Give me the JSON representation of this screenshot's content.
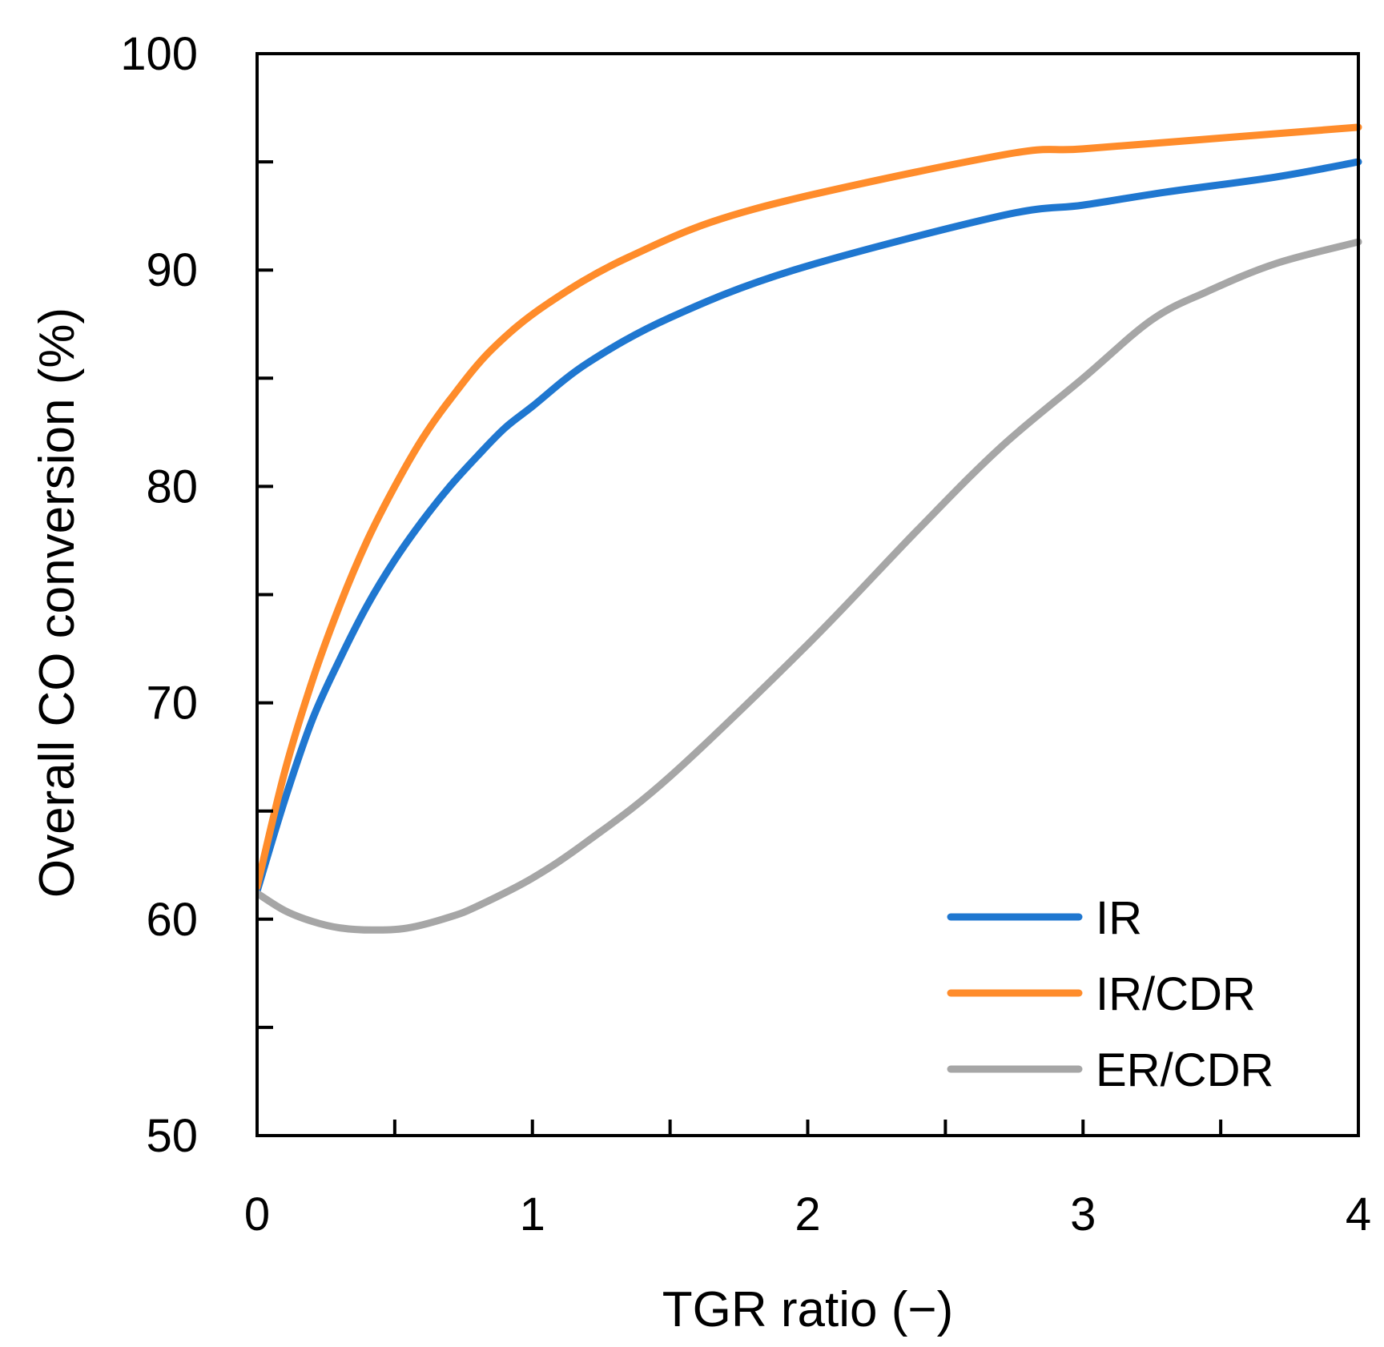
{
  "chart_data": {
    "type": "line",
    "title": "",
    "xlabel": "TGR ratio (−)",
    "ylabel": "Overall CO conversion (%)",
    "xlim": [
      0,
      4
    ],
    "ylim": [
      50,
      100
    ],
    "x_ticks": [
      0,
      1,
      2,
      3,
      4
    ],
    "x_tick_labels": [
      "0",
      "1",
      "2",
      "3",
      "4"
    ],
    "x_minor_ticks": [
      0.5,
      1.5,
      2.5,
      3.5
    ],
    "y_ticks": [
      50,
      60,
      70,
      80,
      90,
      100
    ],
    "y_tick_labels": [
      "50",
      "60",
      "70",
      "80",
      "90",
      "100"
    ],
    "y_minor_ticks": [
      55,
      65,
      75,
      85,
      95
    ],
    "grid": false,
    "legend_position": "bottom-right",
    "series": [
      {
        "name": "IR",
        "color": "#1f77d0",
        "x": [
          0,
          0.1,
          0.2,
          0.3,
          0.4,
          0.5,
          0.6,
          0.7,
          0.8,
          0.9,
          1.0,
          1.2,
          1.5,
          1.95,
          2.7,
          3.0,
          3.3,
          3.7,
          4.0
        ],
        "y": [
          61.3,
          65.5,
          69.2,
          72.0,
          74.5,
          76.6,
          78.4,
          80.0,
          81.4,
          82.7,
          83.7,
          85.7,
          87.8,
          90.0,
          92.5,
          93.0,
          93.6,
          94.3,
          95.0
        ]
      },
      {
        "name": "IR/CDR",
        "color": "#ff8c2b",
        "x": [
          0,
          0.1,
          0.2,
          0.3,
          0.4,
          0.5,
          0.6,
          0.7,
          0.85,
          1.05,
          1.35,
          1.8,
          2.7,
          3.0,
          3.5,
          4.0
        ],
        "y": [
          61.5,
          66.8,
          71.0,
          74.5,
          77.5,
          80.0,
          82.2,
          84.0,
          86.3,
          88.4,
          90.6,
          92.8,
          95.3,
          95.6,
          96.1,
          96.6
        ]
      },
      {
        "name": "ER/CDR",
        "color": "#a6a6a6",
        "x": [
          0,
          0.1,
          0.2,
          0.3,
          0.42,
          0.55,
          0.7,
          0.8,
          1.0,
          1.2,
          1.5,
          2.0,
          2.4,
          2.7,
          3.0,
          3.25,
          3.45,
          3.7,
          4.0
        ],
        "y": [
          61.2,
          60.4,
          59.9,
          59.6,
          59.5,
          59.6,
          60.1,
          60.6,
          61.9,
          63.6,
          66.6,
          72.7,
          78.0,
          81.8,
          85.0,
          87.7,
          89.0,
          90.3,
          91.3
        ]
      }
    ]
  }
}
